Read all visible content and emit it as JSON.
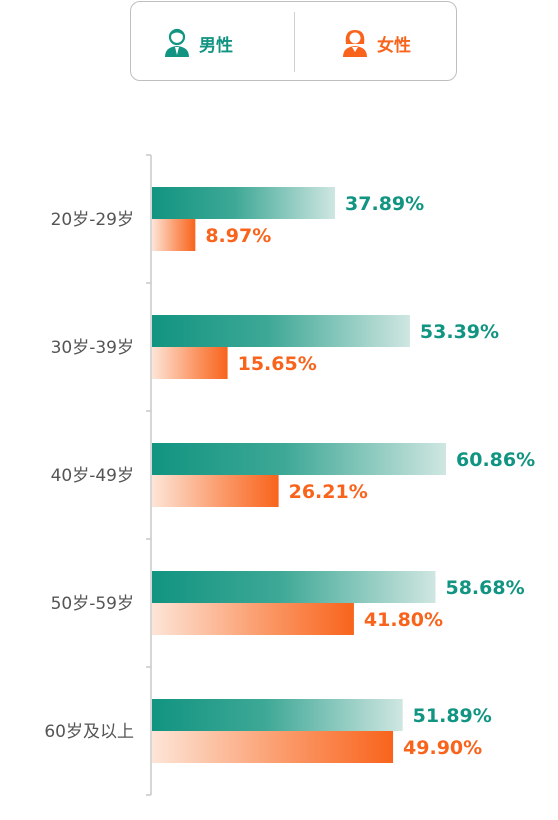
{
  "legend": {
    "male": {
      "label": "男性",
      "icon": "male-person-icon",
      "color": "#119481"
    },
    "female": {
      "label": "女性",
      "icon": "female-person-icon",
      "color": "#f8641c"
    }
  },
  "chart_data": {
    "type": "bar",
    "orientation": "horizontal",
    "categories": [
      "20岁-29岁",
      "30岁-39岁",
      "40岁-49岁",
      "50岁-59岁",
      "60岁及以上"
    ],
    "series": [
      {
        "name": "男性",
        "values": [
          37.89,
          53.39,
          60.86,
          58.68,
          51.89
        ],
        "color": "#119481"
      },
      {
        "name": "女性",
        "values": [
          8.97,
          15.65,
          26.21,
          41.8,
          49.9
        ],
        "color": "#f8641c"
      }
    ],
    "value_labels": {
      "男性": [
        "37.89%",
        "53.39%",
        "60.86%",
        "58.68%",
        "51.89%"
      ],
      "女性": [
        "8.97%",
        "15.65%",
        "26.21%",
        "41.80%",
        "49.90%"
      ]
    },
    "xlim": [
      0,
      100
    ],
    "grid": false,
    "legend_position": "top"
  }
}
